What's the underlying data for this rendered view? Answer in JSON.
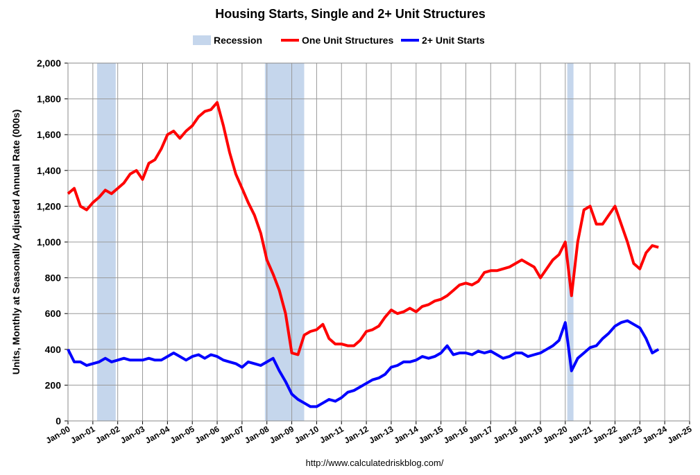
{
  "chart_data": {
    "type": "line",
    "title": "Housing Starts, Single and 2+ Unit Structures",
    "y_label": "Units, Monthly at Seasonally Adjusted Annual Rate (000s)",
    "source": "http://www.calculatedriskblog.com/",
    "recession": {
      "name": "Recession",
      "color": "#c5d6ec",
      "periods": [
        [
          2001.17,
          2001.92
        ],
        [
          2007.92,
          2009.5
        ],
        [
          2020.08,
          2020.33
        ]
      ]
    },
    "x": [
      2000,
      2000.25,
      2000.5,
      2000.75,
      2001,
      2001.25,
      2001.5,
      2001.75,
      2002,
      2002.25,
      2002.5,
      2002.75,
      2003,
      2003.25,
      2003.5,
      2003.75,
      2004,
      2004.25,
      2004.5,
      2004.75,
      2005,
      2005.25,
      2005.5,
      2005.75,
      2006,
      2006.25,
      2006.5,
      2006.75,
      2007,
      2007.25,
      2007.5,
      2007.75,
      2008,
      2008.25,
      2008.5,
      2008.75,
      2009,
      2009.25,
      2009.5,
      2009.75,
      2010,
      2010.25,
      2010.5,
      2010.75,
      2011,
      2011.25,
      2011.5,
      2011.75,
      2012,
      2012.25,
      2012.5,
      2012.75,
      2013,
      2013.25,
      2013.5,
      2013.75,
      2014,
      2014.25,
      2014.5,
      2014.75,
      2015,
      2015.25,
      2015.5,
      2015.75,
      2016,
      2016.25,
      2016.5,
      2016.75,
      2017,
      2017.25,
      2017.5,
      2017.75,
      2018,
      2018.25,
      2018.5,
      2018.75,
      2019,
      2019.25,
      2019.5,
      2019.75,
      2020,
      2020.25,
      2020.5,
      2020.75,
      2021,
      2021.25,
      2021.5,
      2021.75,
      2022,
      2022.25,
      2022.5,
      2022.75,
      2023,
      2023.25,
      2023.5,
      2023.75
    ],
    "series": [
      {
        "name": "One Unit Structures",
        "color": "#ff0000",
        "values": [
          1270,
          1300,
          1200,
          1180,
          1220,
          1250,
          1290,
          1270,
          1300,
          1330,
          1380,
          1400,
          1350,
          1440,
          1460,
          1520,
          1600,
          1620,
          1580,
          1620,
          1650,
          1700,
          1730,
          1740,
          1780,
          1650,
          1500,
          1380,
          1300,
          1220,
          1150,
          1050,
          900,
          820,
          730,
          600,
          380,
          370,
          480,
          500,
          510,
          540,
          460,
          430,
          430,
          420,
          420,
          450,
          500,
          510,
          530,
          580,
          620,
          600,
          610,
          630,
          610,
          640,
          650,
          670,
          680,
          700,
          730,
          760,
          770,
          760,
          780,
          830,
          840,
          840,
          850,
          860,
          880,
          900,
          880,
          860,
          800,
          850,
          900,
          930,
          1000,
          700,
          1000,
          1180,
          1200,
          1100,
          1100,
          1150,
          1200,
          1100,
          1000,
          880,
          850,
          940,
          980,
          970
        ]
      },
      {
        "name": "2+ Unit Starts",
        "color": "#0000ff",
        "values": [
          400,
          330,
          330,
          310,
          320,
          330,
          350,
          330,
          340,
          350,
          340,
          340,
          340,
          350,
          340,
          340,
          360,
          380,
          360,
          340,
          360,
          370,
          350,
          370,
          360,
          340,
          330,
          320,
          300,
          330,
          320,
          310,
          330,
          350,
          280,
          220,
          150,
          120,
          100,
          80,
          80,
          100,
          120,
          110,
          130,
          160,
          170,
          190,
          210,
          230,
          240,
          260,
          300,
          310,
          330,
          330,
          340,
          360,
          350,
          360,
          380,
          420,
          370,
          380,
          380,
          370,
          390,
          380,
          390,
          370,
          350,
          360,
          380,
          380,
          360,
          370,
          380,
          400,
          420,
          450,
          550,
          280,
          350,
          380,
          410,
          420,
          460,
          490,
          530,
          550,
          560,
          540,
          520,
          460,
          380,
          400
        ]
      }
    ],
    "xlim": [
      2000,
      2025
    ],
    "xticks": [
      {
        "value": 2000,
        "label": "Jan-00"
      },
      {
        "value": 2001,
        "label": "Jan-01"
      },
      {
        "value": 2002,
        "label": "Jan-02"
      },
      {
        "value": 2003,
        "label": "Jan-03"
      },
      {
        "value": 2004,
        "label": "Jan-04"
      },
      {
        "value": 2005,
        "label": "Jan-05"
      },
      {
        "value": 2006,
        "label": "Jan-06"
      },
      {
        "value": 2007,
        "label": "Jan-07"
      },
      {
        "value": 2008,
        "label": "Jan-08"
      },
      {
        "value": 2009,
        "label": "Jan-09"
      },
      {
        "value": 2010,
        "label": "Jan-10"
      },
      {
        "value": 2011,
        "label": "Jan-11"
      },
      {
        "value": 2012,
        "label": "Jan-12"
      },
      {
        "value": 2013,
        "label": "Jan-13"
      },
      {
        "value": 2014,
        "label": "Jan-14"
      },
      {
        "value": 2015,
        "label": "Jan-15"
      },
      {
        "value": 2016,
        "label": "Jan-16"
      },
      {
        "value": 2017,
        "label": "Jan-17"
      },
      {
        "value": 2018,
        "label": "Jan-18"
      },
      {
        "value": 2019,
        "label": "Jan-19"
      },
      {
        "value": 2020,
        "label": "Jan-20"
      },
      {
        "value": 2021,
        "label": "Jan-21"
      },
      {
        "value": 2022,
        "label": "Jan-22"
      },
      {
        "value": 2023,
        "label": "Jan-23"
      },
      {
        "value": 2024,
        "label": "Jan-24"
      },
      {
        "value": 2025,
        "label": "Jan-25"
      }
    ],
    "ylim": [
      0,
      2000
    ],
    "yticks": [
      0,
      200,
      400,
      600,
      800,
      {
        "value": 1000,
        "label": "1,000"
      },
      {
        "value": 1200,
        "label": "1,200"
      },
      {
        "value": 1400,
        "label": "1,400"
      },
      {
        "value": 1600,
        "label": "1,600"
      },
      {
        "value": 1800,
        "label": "1,800"
      },
      {
        "value": 2000,
        "label": "2,000"
      }
    ],
    "grid": true
  }
}
